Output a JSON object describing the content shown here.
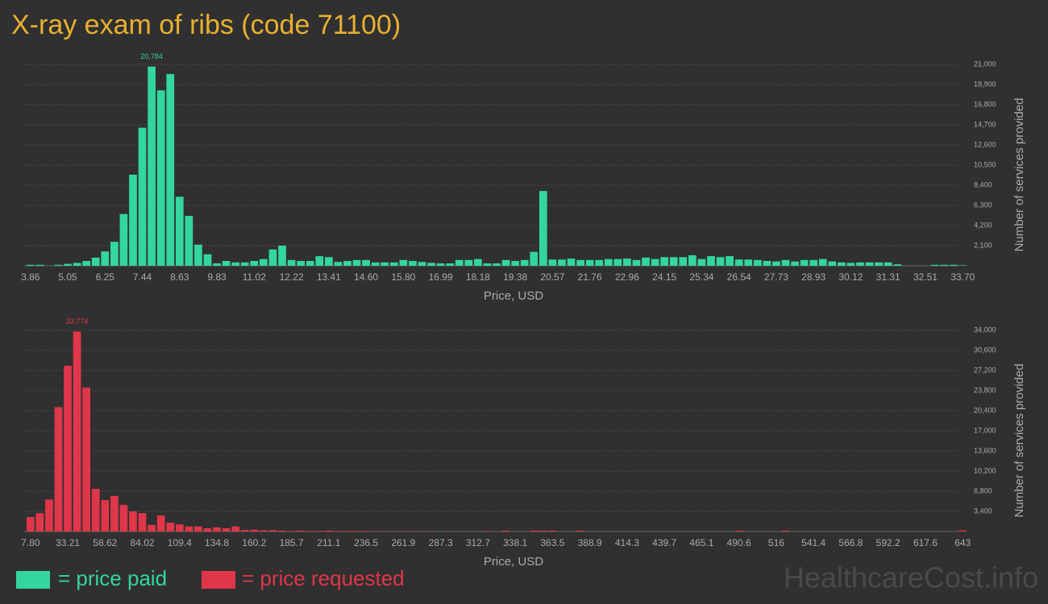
{
  "chart_data": [
    {
      "type": "bar",
      "title": "X-ray exam of ribs (code 71100)",
      "x_label": "Price, USD",
      "y_label": "Number of services provided",
      "categories": [
        "3.86",
        null,
        null,
        null,
        "5.05",
        null,
        null,
        null,
        "6.25",
        null,
        null,
        null,
        "7.44",
        null,
        null,
        null,
        "8.63",
        null,
        null,
        null,
        "9.83",
        null,
        null,
        null,
        "11.02",
        null,
        null,
        null,
        "12.22",
        null,
        null,
        null,
        "13.41",
        null,
        null,
        null,
        "14.60",
        null,
        null,
        null,
        "15.80",
        null,
        null,
        null,
        "16.99",
        null,
        null,
        null,
        "18.18",
        null,
        null,
        null,
        "19.38",
        null,
        null,
        null,
        "20.57",
        null,
        null,
        null,
        "21.76",
        null,
        null,
        null,
        "22.96",
        null,
        null,
        null,
        "24.15",
        null,
        null,
        null,
        "25.34",
        null,
        null,
        null,
        "26.54",
        null,
        null,
        null,
        "27.73",
        null,
        null,
        null,
        "28.93",
        null,
        null,
        null,
        "30.12",
        null,
        null,
        null,
        "31.31",
        null,
        null,
        null,
        "32.51",
        null,
        null,
        null,
        "33.70"
      ],
      "series": [
        {
          "name": "= price paid",
          "color": "#33d69f",
          "values": [
            100,
            100,
            0,
            100,
            200,
            300,
            500,
            850,
            1500,
            2500,
            5400,
            9500,
            14400,
            20784,
            18300,
            20000,
            7200,
            5200,
            2200,
            1200,
            250,
            500,
            350,
            350,
            500,
            700,
            1700,
            2100,
            600,
            500,
            500,
            1000,
            900,
            400,
            500,
            600,
            600,
            350,
            350,
            350,
            600,
            500,
            400,
            300,
            250,
            250,
            600,
            600,
            700,
            250,
            250,
            600,
            500,
            600,
            1450,
            7800,
            650,
            650,
            750,
            600,
            600,
            600,
            700,
            700,
            750,
            600,
            850,
            700,
            900,
            900,
            900,
            1100,
            700,
            1000,
            900,
            1000,
            650,
            650,
            600,
            500,
            450,
            600,
            450,
            600,
            600,
            700,
            450,
            350,
            300,
            350,
            350,
            350,
            350,
            150,
            0,
            0,
            0,
            100,
            100,
            100,
            50
          ],
          "value_labels": [
            null,
            null,
            null,
            null,
            null,
            null,
            null,
            null,
            null,
            null,
            null,
            null,
            null,
            "20,784",
            null,
            null,
            null,
            null,
            null,
            null,
            null,
            null,
            null,
            null,
            null,
            null,
            null,
            null,
            null,
            null,
            null,
            null,
            null,
            null,
            null,
            null,
            null,
            null,
            null,
            null,
            null,
            null,
            null,
            null,
            null,
            null,
            null,
            null,
            null,
            null,
            null,
            null,
            null,
            null,
            null,
            null,
            null,
            null,
            null,
            null,
            null,
            null,
            null,
            null,
            null,
            null,
            null,
            null,
            null,
            null,
            null,
            null,
            null,
            null,
            null,
            null,
            null,
            null,
            null,
            null,
            null,
            null,
            null,
            null,
            null,
            null,
            null,
            null,
            null,
            null,
            null,
            null,
            null,
            null,
            null,
            null,
            null,
            null,
            null,
            null,
            null
          ]
        }
      ],
      "ylim": [
        0,
        21000
      ],
      "yticks": [
        {
          "value": 2100,
          "label": "2,100"
        },
        {
          "value": 4200,
          "label": "4,200"
        },
        {
          "value": 6300,
          "label": "6,300"
        },
        {
          "value": 8400,
          "label": "8,400"
        },
        {
          "value": 10500,
          "label": "10,500"
        },
        {
          "value": 12600,
          "label": "12,600"
        },
        {
          "value": 14700,
          "label": "14,700"
        },
        {
          "value": 16800,
          "label": "16,800"
        },
        {
          "value": 18900,
          "label": "18,900"
        },
        {
          "value": 21000,
          "label": "21,000"
        }
      ],
      "grid": true
    },
    {
      "type": "bar",
      "x_label": "Price, USD",
      "y_label": "Number of services provided",
      "categories": [
        "7.80",
        null,
        null,
        null,
        "33.21",
        null,
        null,
        null,
        "58.62",
        null,
        null,
        null,
        "84.02",
        null,
        null,
        null,
        "109.4",
        null,
        null,
        null,
        "134.8",
        null,
        null,
        null,
        "160.2",
        null,
        null,
        null,
        "185.7",
        null,
        null,
        null,
        "211.1",
        null,
        null,
        null,
        "236.5",
        null,
        null,
        null,
        "261.9",
        null,
        null,
        null,
        "287.3",
        null,
        null,
        null,
        "312.7",
        null,
        null,
        null,
        "338.1",
        null,
        null,
        null,
        "363.5",
        null,
        null,
        null,
        "388.9",
        null,
        null,
        null,
        "414.3",
        null,
        null,
        null,
        "439.7",
        null,
        null,
        null,
        "465.1",
        null,
        null,
        null,
        "490.6",
        null,
        null,
        null,
        "516",
        null,
        null,
        null,
        "541.4",
        null,
        null,
        null,
        "566.8",
        null,
        null,
        null,
        "592.2",
        null,
        null,
        null,
        "617.6",
        null,
        null,
        null,
        "643"
      ],
      "series": [
        {
          "name": "= price requested",
          "color": "#e0364a",
          "values": [
            2450,
            3100,
            5400,
            21000,
            28000,
            33774,
            24300,
            7200,
            5300,
            6000,
            4500,
            3400,
            3100,
            1100,
            2700,
            1500,
            1200,
            850,
            850,
            550,
            700,
            550,
            850,
            250,
            300,
            200,
            250,
            150,
            100,
            150,
            100,
            100,
            150,
            100,
            100,
            100,
            100,
            50,
            50,
            50,
            50,
            50,
            50,
            50,
            0,
            0,
            0,
            0,
            0,
            100,
            0,
            150,
            0,
            0,
            150,
            150,
            150,
            0,
            0,
            150,
            0,
            0,
            0,
            0,
            0,
            0,
            0,
            0,
            0,
            0,
            0,
            0,
            0,
            0,
            0,
            0,
            150,
            0,
            0,
            0,
            0,
            150,
            0,
            0,
            0,
            0,
            0,
            0,
            0,
            0,
            0,
            0,
            0,
            0,
            0,
            0,
            0,
            0,
            0,
            0,
            200
          ],
          "value_labels": [
            null,
            null,
            null,
            null,
            null,
            "33,774",
            null,
            null,
            null,
            null,
            null,
            null,
            null,
            null,
            null,
            null,
            null,
            null,
            null,
            null,
            null,
            null,
            null,
            null,
            null,
            null,
            null,
            null,
            null,
            null,
            null,
            null,
            null,
            null,
            null,
            null,
            null,
            null,
            null,
            null,
            null,
            null,
            null,
            null,
            null,
            null,
            null,
            null,
            null,
            null,
            null,
            null,
            null,
            null,
            null,
            null,
            null,
            null,
            null,
            null,
            null,
            null,
            null,
            null,
            null,
            null,
            null,
            null,
            null,
            null,
            null,
            null,
            null,
            null,
            null,
            null,
            null,
            null,
            null,
            null,
            null,
            null,
            null,
            null,
            null,
            null,
            null,
            null,
            null,
            null,
            null,
            null,
            null,
            null,
            null,
            null,
            null,
            null,
            null,
            null,
            null
          ]
        }
      ],
      "ylim": [
        0,
        34000
      ],
      "yticks": [
        {
          "value": 3400,
          "label": "3,400"
        },
        {
          "value": 6800,
          "label": "6,800"
        },
        {
          "value": 10200,
          "label": "10,200"
        },
        {
          "value": 13600,
          "label": "13,600"
        },
        {
          "value": 17000,
          "label": "17,000"
        },
        {
          "value": 20400,
          "label": "20,400"
        },
        {
          "value": 23800,
          "label": "23,800"
        },
        {
          "value": 27200,
          "label": "27,200"
        },
        {
          "value": 30600,
          "label": "30,600"
        },
        {
          "value": 34000,
          "label": "34,000"
        }
      ],
      "grid": true
    }
  ],
  "watermark": "HealthcareCost.info"
}
